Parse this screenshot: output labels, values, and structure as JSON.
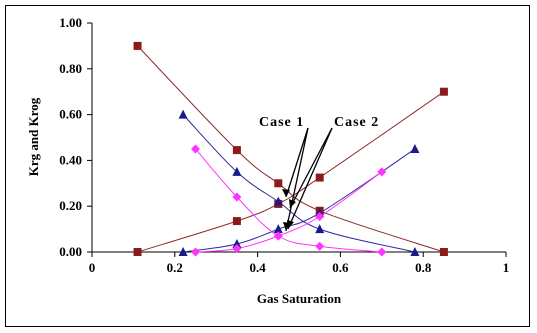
{
  "chart_data": {
    "type": "scatter",
    "title": "",
    "xlabel": "Gas Saturation",
    "ylabel": "Krg and Krog",
    "xlim": [
      0,
      1
    ],
    "ylim": [
      0,
      1
    ],
    "x_ticks": [
      "0",
      "0.2",
      "0.4",
      "0.6",
      "0.8",
      "1"
    ],
    "y_ticks": [
      "0.00",
      "0.20",
      "0.40",
      "0.60",
      "0.80",
      "1.00"
    ],
    "grid": false,
    "legend": "none",
    "annotations": [
      "Case 1",
      "Case 2"
    ],
    "series": [
      {
        "color": "#8b1a1a",
        "marker": "square",
        "line_color": "#8b2b2b",
        "x": [
          0.11,
          0.35,
          0.45,
          0.55,
          0.85
        ],
        "y": [
          0.9,
          0.445,
          0.3,
          0.18,
          0.0
        ]
      },
      {
        "color": "#8b1a1a",
        "marker": "square",
        "line_color": "#8b2b2b",
        "x": [
          0.11,
          0.35,
          0.45,
          0.55,
          0.85
        ],
        "y": [
          0.0,
          0.135,
          0.21,
          0.325,
          0.7
        ]
      },
      {
        "color": "#1a1a8b",
        "marker": "triangle",
        "line_color": "#2b2b9b",
        "x": [
          0.22,
          0.35,
          0.45,
          0.55,
          0.78
        ],
        "y": [
          0.6,
          0.35,
          0.22,
          0.1,
          0.0
        ]
      },
      {
        "color": "#1a1a8b",
        "marker": "triangle",
        "line_color": "#2b2b9b",
        "x": [
          0.22,
          0.35,
          0.45,
          0.55,
          0.78
        ],
        "y": [
          0.0,
          0.035,
          0.1,
          0.17,
          0.45
        ]
      },
      {
        "color": "#ff33ff",
        "marker": "diamond",
        "line_color": "#ff33ff",
        "x": [
          0.25,
          0.35,
          0.45,
          0.55,
          0.7
        ],
        "y": [
          0.45,
          0.24,
          0.07,
          0.025,
          0.0
        ]
      },
      {
        "color": "#ff33ff",
        "marker": "diamond",
        "line_color": "#ff33ff",
        "x": [
          0.25,
          0.35,
          0.45,
          0.55,
          0.7
        ],
        "y": [
          0.0,
          0.015,
          0.07,
          0.155,
          0.35
        ]
      }
    ]
  }
}
